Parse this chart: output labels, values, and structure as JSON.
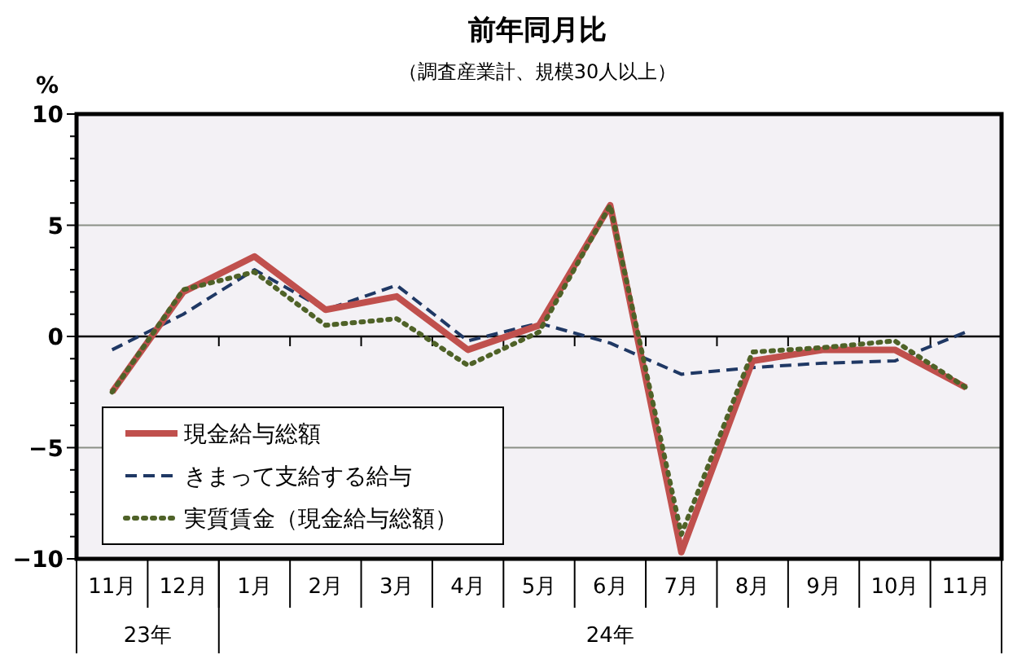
{
  "chart_data": {
    "type": "line",
    "title": "前年同月比",
    "subtitle": "（調査産業計、規模30人以上）",
    "ylabel": "%",
    "categories": [
      "11月",
      "12月",
      "1月",
      "2月",
      "3月",
      "4月",
      "5月",
      "6月",
      "7月",
      "8月",
      "9月",
      "10月",
      "11月"
    ],
    "annotations": [
      "23年",
      "24年"
    ],
    "ylim": [
      -10,
      10
    ],
    "yticks": [
      -10,
      {
        "value": -9,
        "label": null
      },
      {
        "value": -8,
        "label": null
      },
      {
        "value": -7,
        "label": null
      },
      {
        "value": -6,
        "label": null
      },
      -5,
      {
        "value": -4,
        "label": null
      },
      {
        "value": -3,
        "label": null
      },
      {
        "value": -2,
        "label": null
      },
      {
        "value": -1,
        "label": null
      },
      0,
      {
        "value": 1,
        "label": null
      },
      {
        "value": 2,
        "label": null
      },
      {
        "value": 3,
        "label": null
      },
      {
        "value": 4,
        "label": null
      },
      5,
      {
        "value": 6,
        "label": null
      },
      {
        "value": 7,
        "label": null
      },
      {
        "value": 8,
        "label": null
      },
      {
        "value": 9,
        "label": null
      },
      10
    ],
    "grid": "y",
    "legend": "bottom left",
    "marker": "none",
    "series": [
      {
        "name": "現金給与総額",
        "color": "#c0504d",
        "line_style": "solid",
        "values": [
          -2.5,
          2.0,
          3.6,
          1.2,
          1.8,
          -0.6,
          0.5,
          5.9,
          -9.7,
          -1.1,
          -0.6,
          -0.6,
          -2.3
        ]
      },
      {
        "name": "きまって支給する給与",
        "color": "#1f3864",
        "line_style": "dashed",
        "values": [
          -0.6,
          1.0,
          3.0,
          1.2,
          2.3,
          -0.2,
          0.6,
          -0.3,
          -1.7,
          -1.4,
          -1.2,
          -1.1,
          0.2
        ]
      },
      {
        "name": "実質賃金（現金給与総額）",
        "color": "#4f6228",
        "line_style": "dotted",
        "values": [
          -2.5,
          2.1,
          2.9,
          0.5,
          0.8,
          -1.3,
          0.2,
          5.9,
          -8.9,
          -0.7,
          -0.5,
          -0.2,
          -2.3
        ]
      }
    ]
  }
}
